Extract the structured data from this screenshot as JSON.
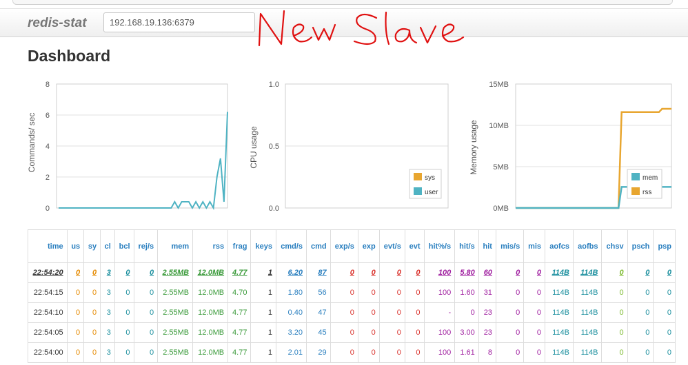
{
  "app": {
    "brand": "redis-stat",
    "host_value": "192.168.19.136:6379",
    "annotation": "New Slave",
    "page_title": "Dashboard"
  },
  "charts": {
    "commands": {
      "ylabel": "Commands/ sec",
      "ticks": [
        "8",
        "6",
        "4",
        "2",
        "0"
      ]
    },
    "cpu": {
      "ylabel": "CPU usage",
      "ticks": [
        "1.0",
        "0.5",
        "0.0"
      ],
      "legend": [
        {
          "label": "sys",
          "color": "#e8a630"
        },
        {
          "label": "user",
          "color": "#4fb3c3"
        }
      ]
    },
    "memory": {
      "ylabel": "Memory usage",
      "ticks": [
        "15MB",
        "10MB",
        "5MB",
        "0MB"
      ],
      "legend": [
        {
          "label": "mem",
          "color": "#4fb3c3"
        },
        {
          "label": "rss",
          "color": "#e8a630"
        }
      ]
    }
  },
  "chart_data": [
    {
      "type": "line",
      "ylabel": "Commands/ sec",
      "ylim": [
        0,
        8
      ],
      "grid": true,
      "series": [
        {
          "color": "#4fb3c3",
          "x": [
            0,
            1,
            2,
            3,
            4,
            5,
            6,
            7,
            8,
            9,
            10,
            11,
            12,
            13,
            14,
            15,
            16,
            17,
            18,
            19,
            20,
            21,
            22,
            23,
            24,
            25,
            26,
            27,
            28,
            29,
            30,
            31,
            32,
            33,
            34,
            35,
            36,
            37,
            38,
            39,
            40,
            41,
            42,
            43,
            44,
            45,
            46,
            47,
            48
          ],
          "values": [
            0,
            0,
            0,
            0,
            0,
            0,
            0,
            0,
            0,
            0,
            0,
            0,
            0,
            0,
            0,
            0,
            0,
            0,
            0,
            0,
            0,
            0,
            0,
            0,
            0,
            0,
            0,
            0,
            0,
            0,
            0,
            0,
            0,
            0.4,
            0,
            0.4,
            0.4,
            0.4,
            0,
            0.4,
            0,
            0.4,
            0,
            0.4,
            0,
            2,
            3.2,
            0.4,
            6.2
          ]
        }
      ]
    },
    {
      "type": "line",
      "ylabel": "CPU usage",
      "ylim": [
        0,
        1
      ],
      "grid": true,
      "legend_position": "bottom-right",
      "series": [
        {
          "name": "sys",
          "color": "#e8a630",
          "values": []
        },
        {
          "name": "user",
          "color": "#4fb3c3",
          "values": []
        }
      ]
    },
    {
      "type": "line",
      "ylabel": "Memory usage",
      "ylim": [
        0,
        15
      ],
      "grid": true,
      "legend_position": "bottom-right",
      "series": [
        {
          "name": "mem",
          "color": "#4fb3c3",
          "x": [
            0,
            0.66,
            0.68,
            1.0
          ],
          "values": [
            0,
            0,
            2.55,
            2.55
          ]
        },
        {
          "name": "rss",
          "color": "#e8a630",
          "x": [
            0,
            0.66,
            0.68,
            0.92,
            0.94,
            1.0
          ],
          "values": [
            0,
            0,
            11.6,
            11.6,
            12.0,
            12.0
          ]
        }
      ]
    }
  ],
  "table": {
    "columns": [
      "time",
      "us",
      "sy",
      "cl",
      "bcl",
      "rej/s",
      "mem",
      "rss",
      "frag",
      "keys",
      "cmd/s",
      "cmd",
      "exp/s",
      "exp",
      "evt/s",
      "evt",
      "hit%/s",
      "hit/s",
      "hit",
      "mis/s",
      "mis",
      "aofcs",
      "aofbs",
      "chsv",
      "psch",
      "psp"
    ],
    "col_classes": [
      "c-dark",
      "c-orange",
      "c-orange",
      "c-teal",
      "c-teal",
      "c-teal",
      "c-green",
      "c-green",
      "c-green",
      "c-dark",
      "c-blue",
      "c-blue",
      "c-red",
      "c-red",
      "c-red",
      "c-red",
      "c-purple",
      "c-purple",
      "c-purple",
      "c-purple",
      "c-purple",
      "c-teal",
      "c-teal",
      "c-lime",
      "c-teal",
      "c-teal"
    ],
    "rows": [
      [
        "22:54:20",
        "0",
        "0",
        "3",
        "0",
        "0",
        "2.55MB",
        "12.0MB",
        "4.77",
        "1",
        "6.20",
        "87",
        "0",
        "0",
        "0",
        "0",
        "100",
        "5.80",
        "60",
        "0",
        "0",
        "114B",
        "114B",
        "0",
        "0",
        "0"
      ],
      [
        "22:54:15",
        "0",
        "0",
        "3",
        "0",
        "0",
        "2.55MB",
        "12.0MB",
        "4.70",
        "1",
        "1.80",
        "56",
        "0",
        "0",
        "0",
        "0",
        "100",
        "1.60",
        "31",
        "0",
        "0",
        "114B",
        "114B",
        "0",
        "0",
        "0"
      ],
      [
        "22:54:10",
        "0",
        "0",
        "3",
        "0",
        "0",
        "2.55MB",
        "12.0MB",
        "4.77",
        "1",
        "0.40",
        "47",
        "0",
        "0",
        "0",
        "0",
        "-",
        "0",
        "23",
        "0",
        "0",
        "114B",
        "114B",
        "0",
        "0",
        "0"
      ],
      [
        "22:54:05",
        "0",
        "0",
        "3",
        "0",
        "0",
        "2.55MB",
        "12.0MB",
        "4.77",
        "1",
        "3.20",
        "45",
        "0",
        "0",
        "0",
        "0",
        "100",
        "3.00",
        "23",
        "0",
        "0",
        "114B",
        "114B",
        "0",
        "0",
        "0"
      ],
      [
        "22:54:00",
        "0",
        "0",
        "3",
        "0",
        "0",
        "2.55MB",
        "12.0MB",
        "4.77",
        "1",
        "2.01",
        "29",
        "0",
        "0",
        "0",
        "0",
        "100",
        "1.61",
        "8",
        "0",
        "0",
        "114B",
        "114B",
        "0",
        "0",
        "0"
      ]
    ]
  }
}
